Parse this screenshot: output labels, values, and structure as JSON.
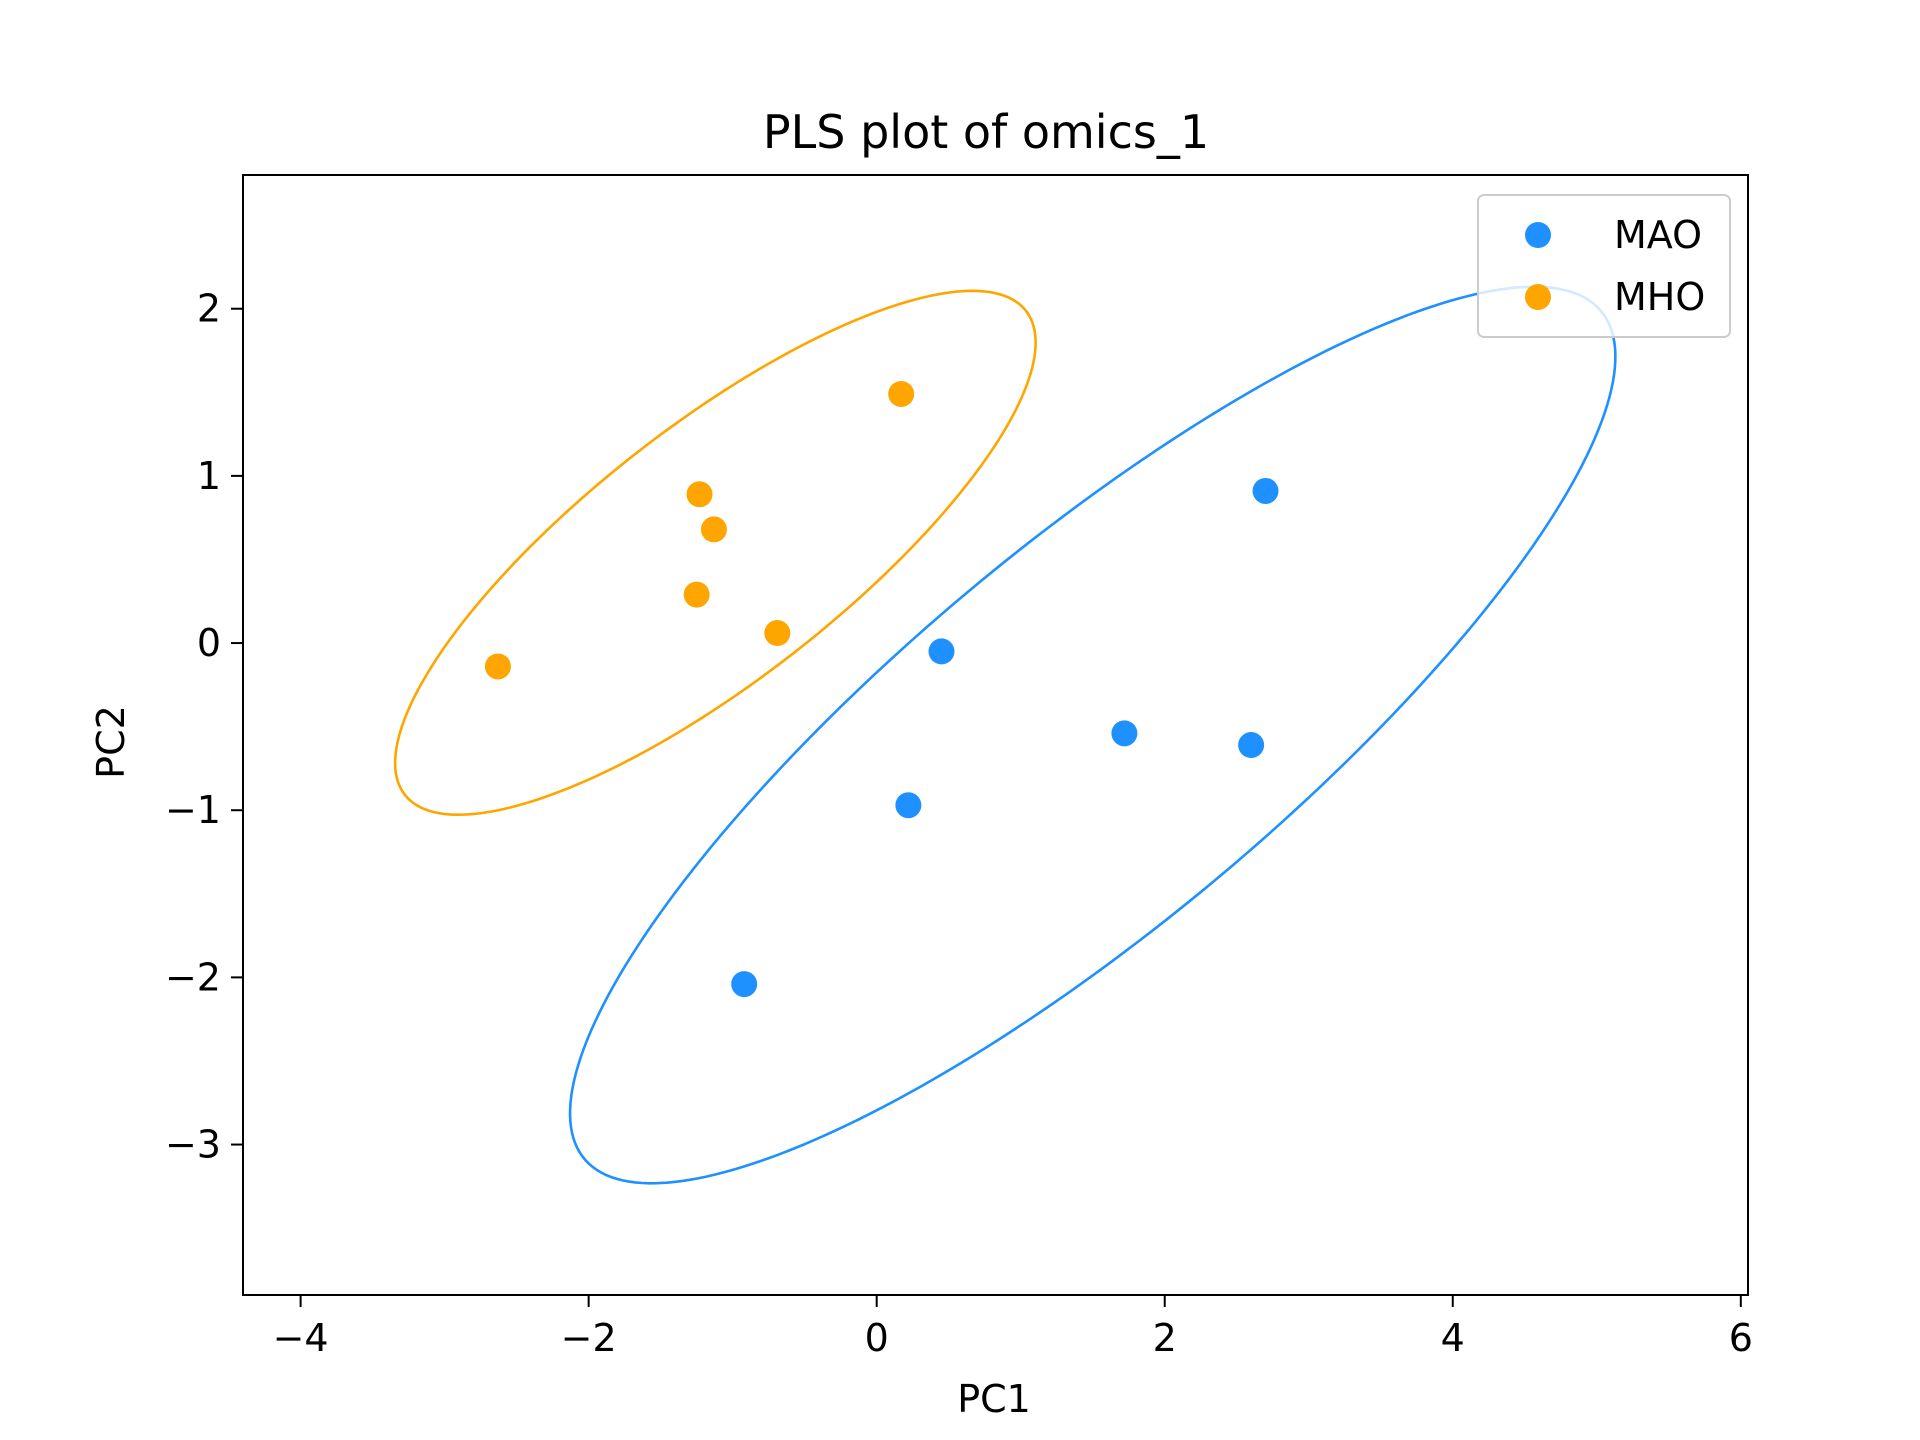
{
  "chart_data": {
    "type": "scatter",
    "title": "PLS plot of omics_1",
    "xlabel": "PC1",
    "ylabel": "PC2",
    "xlim": [
      -4.4,
      6.05
    ],
    "ylim": [
      -3.9,
      2.8
    ],
    "xticks": [
      -4,
      -2,
      0,
      2,
      4,
      6
    ],
    "yticks": [
      -3,
      -2,
      -1,
      0,
      1,
      2
    ],
    "xtick_labels": [
      "−4",
      "−2",
      "0",
      "2",
      "4",
      "6"
    ],
    "ytick_labels": [
      "−3",
      "−2",
      "−1",
      "0",
      "1",
      "2"
    ],
    "grid": false,
    "legend_position": "top-right",
    "series": [
      {
        "name": "MAO",
        "color": "#1e90ff",
        "points": [
          {
            "x": 2.7,
            "y": 0.91
          },
          {
            "x": 0.45,
            "y": -0.05
          },
          {
            "x": 1.72,
            "y": -0.54
          },
          {
            "x": 2.6,
            "y": -0.61
          },
          {
            "x": 0.22,
            "y": -0.97
          },
          {
            "x": -0.92,
            "y": -2.04
          }
        ],
        "ellipse": {
          "cx": 1.5,
          "cy": -0.55,
          "rx": 4.35,
          "ry": 1.2,
          "angle_deg": 35
        }
      },
      {
        "name": "MHO",
        "color": "#ffa500",
        "points": [
          {
            "x": 0.17,
            "y": 1.49
          },
          {
            "x": -1.23,
            "y": 0.89
          },
          {
            "x": -1.13,
            "y": 0.68
          },
          {
            "x": -1.25,
            "y": 0.29
          },
          {
            "x": -0.69,
            "y": 0.06
          },
          {
            "x": -2.63,
            "y": -0.14
          }
        ],
        "ellipse": {
          "cx": -1.12,
          "cy": 0.54,
          "rx": 2.6,
          "ry": 0.8,
          "angle_deg": 33
        }
      }
    ]
  }
}
